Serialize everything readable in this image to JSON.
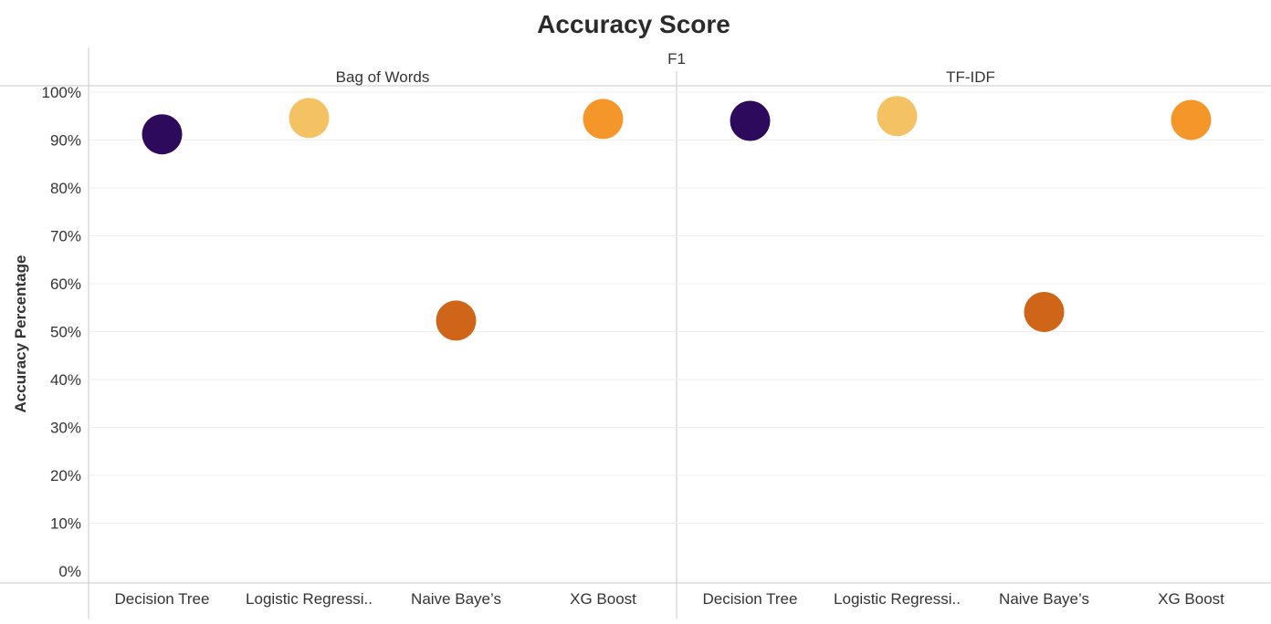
{
  "chart_data": {
    "type": "scatter",
    "title": "Accuracy Score",
    "column_header": "F1",
    "ylabel": "Accuracy Percentage",
    "ylim": [
      0,
      1.03
    ],
    "yticks": [
      "0%",
      "10%",
      "20%",
      "30%",
      "40%",
      "50%",
      "60%",
      "70%",
      "80%",
      "90%",
      "100%"
    ],
    "ytick_values": [
      0,
      0.1,
      0.2,
      0.3,
      0.4,
      0.5,
      0.6,
      0.7,
      0.8,
      0.9,
      1.0
    ],
    "grid": true,
    "categories": [
      "Decision Tree",
      "Logistic Regressi..",
      "Naive Baye’s",
      "XG Boost"
    ],
    "colors": [
      "#2e0a5c",
      "#f4c263",
      "#cf6518",
      "#f5962a"
    ],
    "panels": [
      {
        "name": "Bag of Words",
        "values": [
          0.912,
          0.946,
          0.523,
          0.944
        ]
      },
      {
        "name": "TF-IDF",
        "values": [
          0.94,
          0.95,
          0.541,
          0.942
        ]
      }
    ]
  }
}
